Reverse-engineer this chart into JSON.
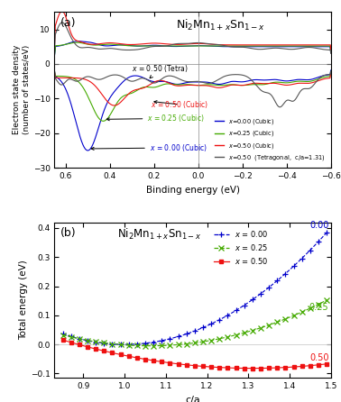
{
  "panel_a": {
    "title": "Ni$_2$Mn$_{1+x}$Sn$_{1-x}$",
    "xlabel": "Binding energy (eV)",
    "ylabel": "Electron state density\n(number of states/eV)",
    "xlim": [
      0.65,
      -0.6
    ],
    "ylim": [
      -30,
      15
    ],
    "yticks": [
      -30,
      -20,
      -10,
      0,
      10
    ],
    "xticks": [
      0.6,
      0.4,
      0.2,
      0.0,
      -0.2,
      -0.4,
      -0.6
    ],
    "label_a": "(a)"
  },
  "panel_b": {
    "title": "Ni$_2$Mn$_{1+x}$Sn$_{1-x}$",
    "xlabel": "c/a",
    "ylabel": "Total energy (eV)",
    "xlim": [
      0.83,
      1.5
    ],
    "ylim": [
      -0.115,
      0.42
    ],
    "yticks": [
      -0.1,
      0.0,
      0.1,
      0.2,
      0.3,
      0.4
    ],
    "xticks": [
      0.9,
      1.0,
      1.1,
      1.2,
      1.3,
      1.4,
      1.5
    ],
    "label_b": "(b)"
  },
  "colors": {
    "blue": "#0000cc",
    "green": "#44aa00",
    "red": "#ee1111",
    "dark_gray": "#555555"
  }
}
